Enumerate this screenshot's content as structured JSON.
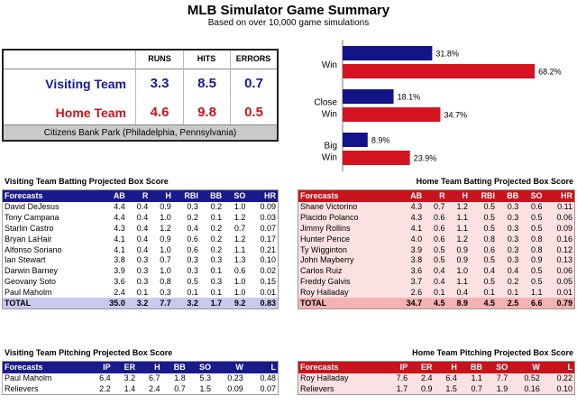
{
  "header": {
    "title": "MLB Simulator Game Summary",
    "subtitle": "Based on over 10,000 game simulations"
  },
  "summary": {
    "columns": [
      "RUNS",
      "HITS",
      "ERRORS"
    ],
    "visiting": {
      "label": "Visiting Team",
      "runs": "3.3",
      "hits": "8.5",
      "errors": "0.7"
    },
    "home": {
      "label": "Home Team",
      "runs": "4.6",
      "hits": "9.8",
      "errors": "0.5"
    },
    "park": "Citizens Bank Park (Philadelphia, Pennsylvania)"
  },
  "chart_data": {
    "type": "bar",
    "orientation": "horizontal",
    "categories": [
      "Win",
      "Close Win",
      "Big Win"
    ],
    "category_lines": [
      [
        "Win"
      ],
      [
        "Close",
        "Win"
      ],
      [
        "Big",
        "Win"
      ]
    ],
    "series": [
      {
        "values": [
          31.8,
          18.1,
          8.9
        ],
        "labels": [
          "31.8%",
          "18.1%",
          "8.9%"
        ],
        "color": "#141489"
      },
      {
        "values": [
          68.2,
          34.7,
          23.9
        ],
        "labels": [
          "68.2%",
          "34.7%",
          "23.9%"
        ],
        "color": "#d41420"
      }
    ],
    "xlim": [
      0,
      80
    ],
    "grid": false
  },
  "visiting_batting": {
    "title": "Visiting Team Batting Projected Box Score",
    "columns": [
      "Forecasts",
      "AB",
      "R",
      "H",
      "RBI",
      "BB",
      "SO",
      "HR"
    ],
    "rows": [
      [
        "David DeJesus",
        "4.4",
        "0.4",
        "0.9",
        "0.3",
        "0.2",
        "1.0",
        "0.09"
      ],
      [
        "Tony Campana",
        "4.4",
        "0.4",
        "1.0",
        "0.2",
        "0.1",
        "1.2",
        "0.03"
      ],
      [
        "Starlin Castro",
        "4.3",
        "0.4",
        "1.2",
        "0.4",
        "0.2",
        "0.7",
        "0.07"
      ],
      [
        "Bryan LaHair",
        "4.1",
        "0.4",
        "0.9",
        "0.6",
        "0.2",
        "1.2",
        "0.17"
      ],
      [
        "Alfonso Soriano",
        "4.1",
        "0.4",
        "1.0",
        "0.6",
        "0.2",
        "1.1",
        "0.21"
      ],
      [
        "Ian Stewart",
        "3.8",
        "0.3",
        "0.7",
        "0.3",
        "0.3",
        "1.3",
        "0.10"
      ],
      [
        "Darwin Barney",
        "3.9",
        "0.3",
        "1.0",
        "0.3",
        "0.1",
        "0.6",
        "0.02"
      ],
      [
        "Geovany Soto",
        "3.6",
        "0.3",
        "0.8",
        "0.5",
        "0.3",
        "1.0",
        "0.15"
      ],
      [
        "Paul Maholm",
        "2.4",
        "0.1",
        "0.3",
        "0.1",
        "0.1",
        "1.0",
        "0.01"
      ]
    ],
    "total": [
      "TOTAL",
      "35.0",
      "3.2",
      "7.7",
      "3.2",
      "1.7",
      "9.2",
      "0.83"
    ]
  },
  "home_batting": {
    "title": "Home Team Batting Projected Box Score",
    "columns": [
      "Forecasts",
      "AB",
      "R",
      "H",
      "RBI",
      "BB",
      "SO",
      "HR"
    ],
    "rows": [
      [
        "Shane Victorino",
        "4.3",
        "0.7",
        "1.2",
        "0.5",
        "0.3",
        "0.6",
        "0.11"
      ],
      [
        "Placido Polanco",
        "4.3",
        "0.6",
        "1.1",
        "0.5",
        "0.3",
        "0.5",
        "0.06"
      ],
      [
        "Jimmy Rollins",
        "4.1",
        "0.6",
        "1.1",
        "0.5",
        "0.3",
        "0.5",
        "0.09"
      ],
      [
        "Hunter Pence",
        "4.0",
        "0.6",
        "1.2",
        "0.8",
        "0.3",
        "0.8",
        "0.16"
      ],
      [
        "Ty Wigginton",
        "3.9",
        "0.5",
        "0.9",
        "0.6",
        "0.3",
        "0.8",
        "0.12"
      ],
      [
        "John Mayberry",
        "3.8",
        "0.5",
        "0.9",
        "0.5",
        "0.3",
        "0.9",
        "0.13"
      ],
      [
        "Carlos Ruiz",
        "3.6",
        "0.4",
        "1.0",
        "0.4",
        "0.4",
        "0.5",
        "0.06"
      ],
      [
        "Freddy Galvis",
        "3.7",
        "0.4",
        "1.1",
        "0.5",
        "0.2",
        "0.5",
        "0.05"
      ],
      [
        "Roy Halladay",
        "2.6",
        "0.1",
        "0.4",
        "0.1",
        "0.1",
        "1.1",
        "0.01"
      ]
    ],
    "total": [
      "TOTAL",
      "34.7",
      "4.5",
      "8.9",
      "4.5",
      "2.5",
      "6.6",
      "0.79"
    ]
  },
  "visiting_pitching": {
    "title": "Visiting Team Pitching Projected Box Score",
    "columns": [
      "Forecasts",
      "IP",
      "ER",
      "H",
      "BB",
      "SO",
      "W",
      "L"
    ],
    "rows": [
      [
        "Paul Maholm",
        "6.4",
        "3.2",
        "6.7",
        "1.8",
        "5.3",
        "0.23",
        "0.48"
      ],
      [
        "Relievers",
        "2.2",
        "1.4",
        "2.4",
        "0.7",
        "1.5",
        "0.09",
        "0.07"
      ]
    ]
  },
  "home_pitching": {
    "title": "Home Team Pitching Projected Box Score",
    "columns": [
      "Forecasts",
      "IP",
      "ER",
      "H",
      "BB",
      "SO",
      "W",
      "L"
    ],
    "rows": [
      [
        "Roy Halladay",
        "7.6",
        "2.4",
        "6.4",
        "1.1",
        "7.7",
        "0.52",
        "0.22"
      ],
      [
        "Relievers",
        "1.7",
        "0.9",
        "1.5",
        "0.7",
        "1.9",
        "0.16",
        "0.10"
      ]
    ]
  }
}
